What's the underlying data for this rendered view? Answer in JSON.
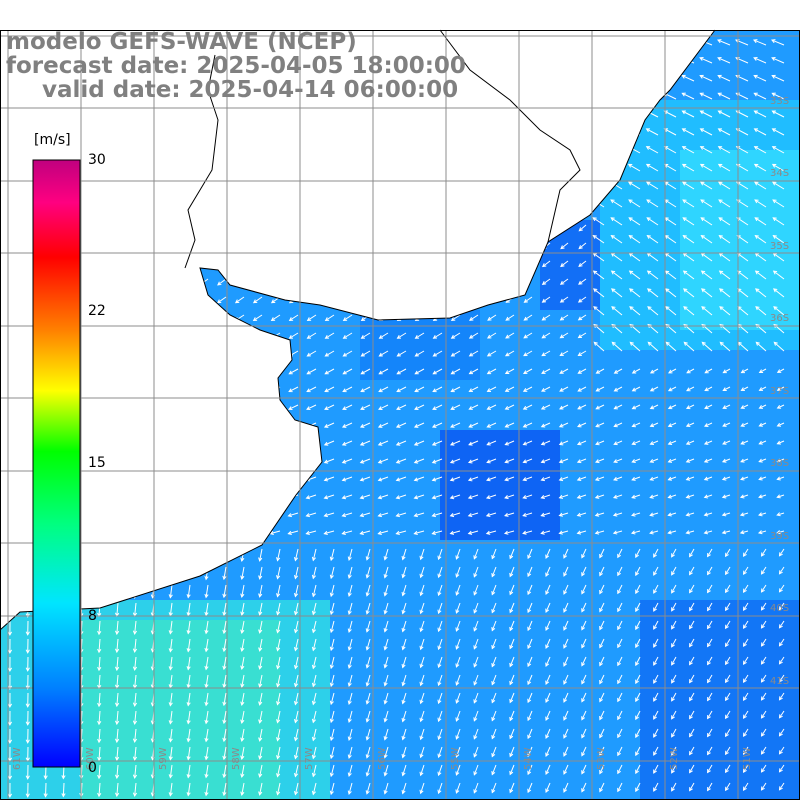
{
  "header": {
    "model": "modelo GEFS-WAVE (NCEP)",
    "forecast": "forecast date: 2025-04-05 18:00:00",
    "valid": "valid date: 2025-04-14 06:00:00"
  },
  "colorbar": {
    "unit": "[m/s]",
    "ticks": [
      "30",
      "22",
      "15",
      "8",
      "0"
    ],
    "tick_values": [
      30,
      22,
      15,
      8,
      0
    ],
    "range": [
      0,
      30
    ],
    "colors": [
      "#0000ff",
      "#0080ff",
      "#00e5ff",
      "#00ff80",
      "#00ff00",
      "#ffff00",
      "#ff8000",
      "#ff0000",
      "#ff0080",
      "#c0007f"
    ]
  },
  "map": {
    "lat_labels": [
      "33S",
      "34S",
      "35S",
      "36S",
      "37S",
      "38S",
      "39S",
      "40S",
      "41S"
    ],
    "lon_labels": [
      "61W",
      "60W",
      "59W",
      "58W",
      "57W",
      "56W",
      "55W",
      "54W",
      "53W",
      "52W",
      "51W"
    ],
    "water_color": "#1a8cff",
    "land_color": "#ffffff",
    "coast_color": "#000000",
    "grid_color": "#888888",
    "arrow_color": "#ffffff"
  }
}
